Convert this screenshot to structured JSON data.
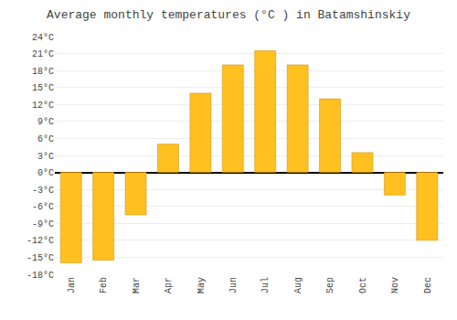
{
  "chart_data": {
    "type": "bar",
    "title": "Average monthly temperatures (°C ) in Batamshinskiy",
    "categories": [
      "Jan",
      "Feb",
      "Mar",
      "Apr",
      "May",
      "Jun",
      "Jul",
      "Aug",
      "Sep",
      "Oct",
      "Nov",
      "Dec"
    ],
    "values": [
      -16,
      -15.5,
      -7.5,
      5,
      14,
      19,
      21.5,
      19,
      13,
      3.5,
      -4,
      -12
    ],
    "color": "#FFC020",
    "ylim": [
      -18,
      24
    ],
    "yticks": [
      {
        "value": -18,
        "label": "-18°C"
      },
      {
        "value": -15,
        "label": "-15°C"
      },
      {
        "value": -12,
        "label": "-12°C"
      },
      {
        "value": -9,
        "label": "-9°C"
      },
      {
        "value": -6,
        "label": "-6°C"
      },
      {
        "value": -3,
        "label": "-3°C"
      },
      {
        "value": 0,
        "label": "0°C"
      },
      {
        "value": 3,
        "label": "3°C"
      },
      {
        "value": 6,
        "label": "6°C"
      },
      {
        "value": 9,
        "label": "9°C"
      },
      {
        "value": 12,
        "label": "12°C"
      },
      {
        "value": 15,
        "label": "15°C"
      },
      {
        "value": 18,
        "label": "18°C"
      },
      {
        "value": 21,
        "label": "21°C"
      },
      {
        "value": 24,
        "label": "24°C"
      }
    ],
    "grid": true
  }
}
